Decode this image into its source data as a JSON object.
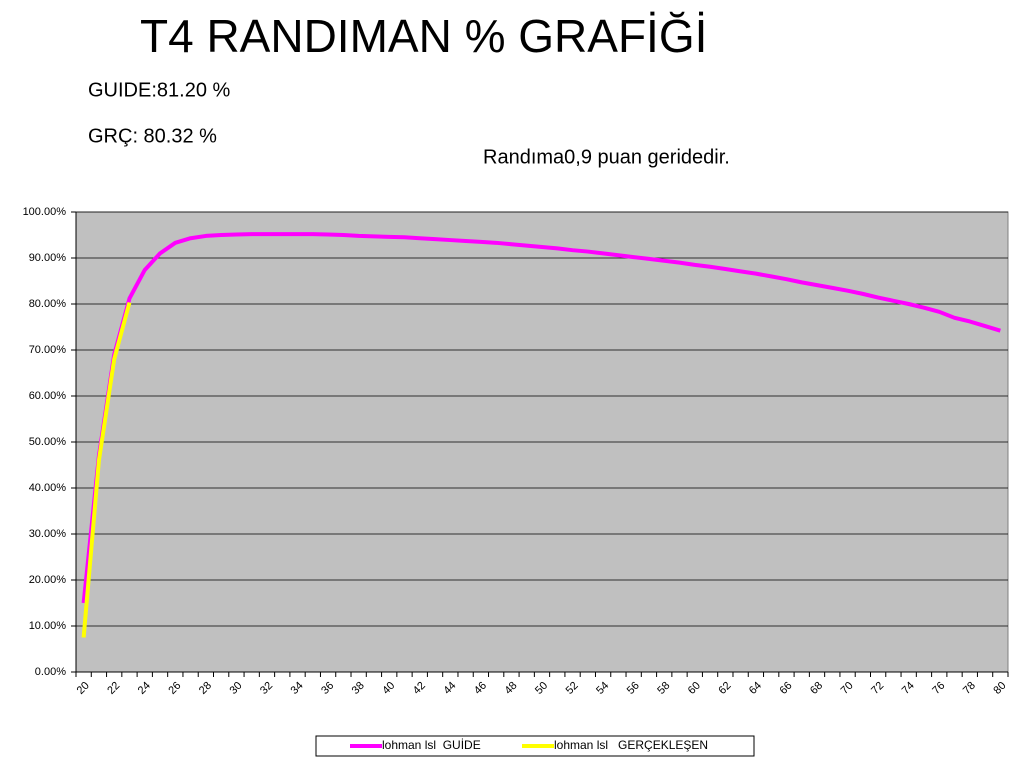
{
  "chart_data": {
    "type": "line",
    "title": "T4 RANDIMAN % GRAFİĞİ",
    "annotations": [
      "GUIDE:81.20 %",
      "GRÇ: 80.32 %",
      "Randıma0,9 puan geridedir."
    ],
    "categories": [
      20,
      null,
      22,
      null,
      24,
      null,
      26,
      null,
      28,
      null,
      30,
      null,
      32,
      null,
      34,
      null,
      36,
      null,
      38,
      null,
      40,
      null,
      42,
      null,
      44,
      null,
      46,
      null,
      48,
      null,
      50,
      null,
      52,
      null,
      54,
      null,
      56,
      null,
      58,
      null,
      60,
      null,
      62,
      null,
      64,
      null,
      66,
      null,
      68,
      null,
      70,
      null,
      72,
      null,
      74,
      null,
      76,
      null,
      78,
      null,
      80
    ],
    "series": [
      {
        "name": "lohman lsl  GUİDE",
        "color": "#ff00ff",
        "values": [
          15,
          47,
          69,
          81.2,
          87.4,
          91,
          93.3,
          94.3,
          94.8,
          95,
          95.1,
          95.2,
          95.2,
          95.2,
          95.2,
          95.2,
          95.1,
          95,
          94.8,
          94.7,
          94.6,
          94.5,
          94.3,
          94.1,
          93.9,
          93.7,
          93.5,
          93.3,
          93.0,
          92.7,
          92.4,
          92.1,
          91.7,
          91.4,
          91.0,
          90.6,
          90.2,
          89.8,
          89.4,
          89.0,
          88.5,
          88.1,
          87.6,
          87.1,
          86.6,
          86.0,
          85.4,
          84.7,
          84.1,
          83.5,
          82.9,
          82.2,
          81.4,
          80.7,
          80.0,
          79.2,
          78.3,
          77.0,
          76.2,
          75.2,
          74.2
        ]
      },
      {
        "name": "lohman lsl   GERÇEKLEŞEN",
        "color": "#ffff00",
        "values": [
          7.5,
          46,
          68,
          80.32,
          null,
          null,
          null,
          null,
          null,
          null,
          null,
          null,
          null,
          null,
          null,
          null,
          null,
          null,
          null,
          null,
          null,
          null,
          null,
          null,
          null,
          null,
          null,
          null,
          null,
          null,
          null,
          null,
          null,
          null,
          null,
          null,
          null,
          null,
          null,
          null,
          null,
          null,
          null,
          null,
          null,
          null,
          null,
          null,
          null,
          null,
          null,
          null,
          null,
          null,
          null,
          null,
          null,
          null,
          null,
          null,
          null
        ]
      }
    ],
    "ylim": [
      0,
      100
    ],
    "yticks": [
      {
        "value": 0,
        "label": "0.00%"
      },
      {
        "value": 10,
        "label": "10.00%"
      },
      {
        "value": 20,
        "label": "20.00%"
      },
      {
        "value": 30,
        "label": "30.00%"
      },
      {
        "value": 40,
        "label": "40.00%"
      },
      {
        "value": 50,
        "label": "50.00%"
      },
      {
        "value": 60,
        "label": "60.00%"
      },
      {
        "value": 70,
        "label": "70.00%"
      },
      {
        "value": 80,
        "label": "80.00%"
      },
      {
        "value": 90,
        "label": "90.00%"
      },
      {
        "value": 100,
        "label": "100.00%"
      }
    ],
    "grid": true,
    "legend": "bottom",
    "background": "#c0c0c0"
  }
}
